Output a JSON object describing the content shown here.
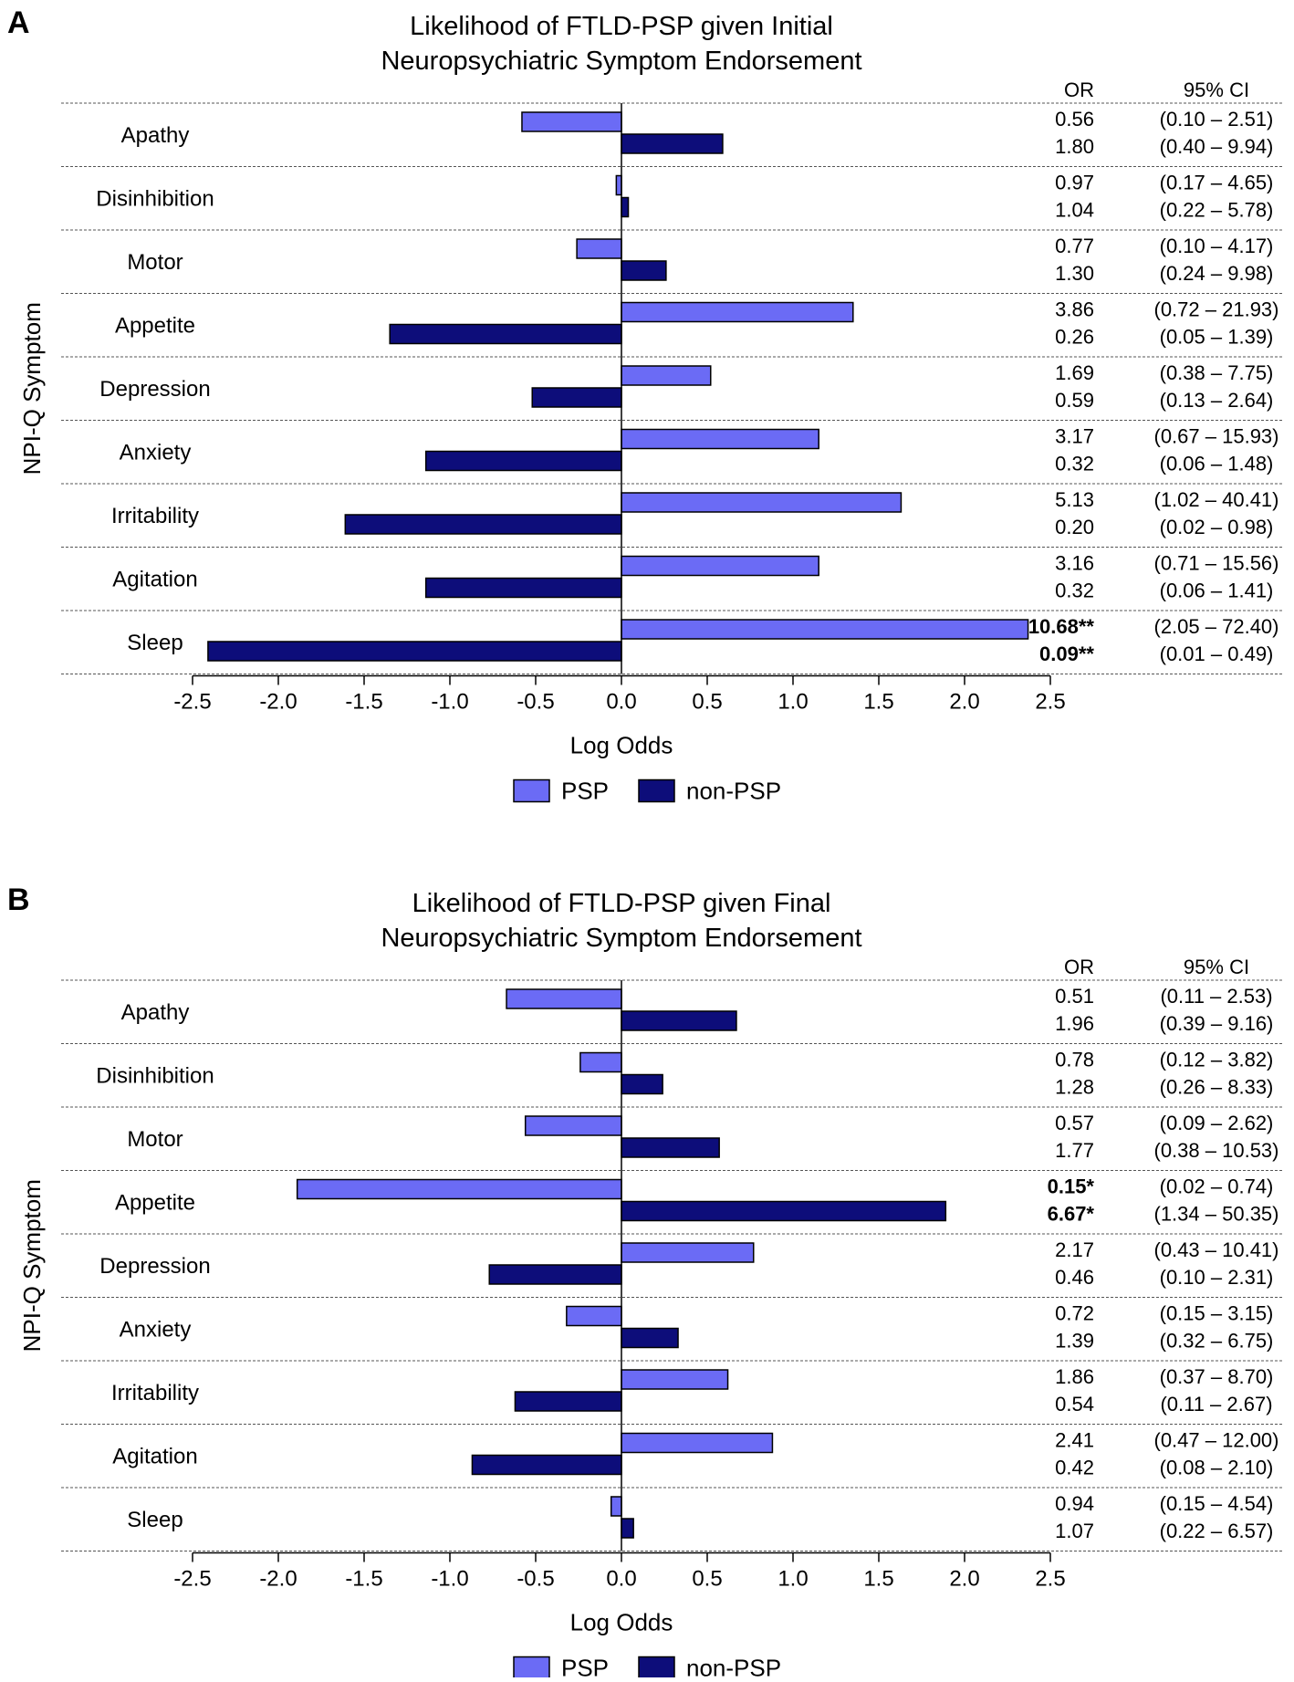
{
  "chart_data": [
    {
      "type": "bar",
      "orientation": "horizontal",
      "panel_label": "A",
      "title_line1": "Likelihood of FTLD-PSP given Initial",
      "title_line2": "Neuropsychiatric Symptom Endorsement",
      "xlabel": "Log Odds",
      "ylabel": "NPI-Q Symptom",
      "xlim": [
        -2.5,
        2.5
      ],
      "xticks": [
        "-2.5",
        "-2.0",
        "-1.5",
        "-1.0",
        "-0.5",
        "0.0",
        "0.5",
        "1.0",
        "1.5",
        "2.0",
        "2.5"
      ],
      "or_header": "OR",
      "ci_header": "95% CI",
      "legend": [
        {
          "name": "PSP",
          "color": "#6b6bf5"
        },
        {
          "name": "non-PSP",
          "color": "#0d0d7a"
        }
      ],
      "categories": [
        "Apathy",
        "Disinhibition",
        "Motor",
        "Appetite",
        "Depression",
        "Anxiety",
        "Irritability",
        "Agitation",
        "Sleep"
      ],
      "series": [
        {
          "name": "PSP",
          "values": [
            -0.58,
            -0.03,
            -0.26,
            1.35,
            0.52,
            1.15,
            1.63,
            1.15,
            2.37
          ],
          "or": [
            "0.56",
            "0.97",
            "0.77",
            "3.86",
            "1.69",
            "3.17",
            "5.13",
            "3.16",
            "10.68**"
          ],
          "ci": [
            "(0.10 – 2.51)",
            "(0.17 – 4.65)",
            "(0.10 – 4.17)",
            "(0.72 – 21.93)",
            "(0.38 – 7.75)",
            "(0.67 – 15.93)",
            "(1.02 – 40.41)",
            "(0.71 – 15.56)",
            "(2.05 – 72.40)"
          ],
          "significant": [
            false,
            false,
            false,
            false,
            false,
            false,
            false,
            false,
            true
          ]
        },
        {
          "name": "non-PSP",
          "values": [
            0.59,
            0.04,
            0.26,
            -1.35,
            -0.52,
            -1.14,
            -1.61,
            -1.14,
            -2.41
          ],
          "or": [
            "1.80",
            "1.04",
            "1.30",
            "0.26",
            "0.59",
            "0.32",
            "0.20",
            "0.32",
            "0.09**"
          ],
          "ci": [
            "(0.40 – 9.94)",
            "(0.22 – 5.78)",
            "(0.24 – 9.98)",
            "(0.05 – 1.39)",
            "(0.13 – 2.64)",
            "(0.06 – 1.48)",
            "(0.02 – 0.98)",
            "(0.06 – 1.41)",
            "(0.01 – 0.49)"
          ],
          "significant": [
            false,
            false,
            false,
            false,
            false,
            false,
            false,
            false,
            true
          ]
        }
      ]
    },
    {
      "type": "bar",
      "orientation": "horizontal",
      "panel_label": "B",
      "title_line1": "Likelihood of FTLD-PSP given Final",
      "title_line2": "Neuropsychiatric Symptom Endorsement",
      "xlabel": "Log Odds",
      "ylabel": "NPI-Q Symptom",
      "xlim": [
        -2.5,
        2.5
      ],
      "xticks": [
        "-2.5",
        "-2.0",
        "-1.5",
        "-1.0",
        "-0.5",
        "0.0",
        "0.5",
        "1.0",
        "1.5",
        "2.0",
        "2.5"
      ],
      "or_header": "OR",
      "ci_header": "95% CI",
      "legend": [
        {
          "name": "PSP",
          "color": "#6b6bf5"
        },
        {
          "name": "non-PSP",
          "color": "#0d0d7a"
        }
      ],
      "categories": [
        "Apathy",
        "Disinhibition",
        "Motor",
        "Appetite",
        "Depression",
        "Anxiety",
        "Irritability",
        "Agitation",
        "Sleep"
      ],
      "series": [
        {
          "name": "PSP",
          "values": [
            -0.67,
            -0.24,
            -0.56,
            -1.89,
            0.77,
            -0.32,
            0.62,
            0.88,
            -0.06
          ],
          "or": [
            "0.51",
            "0.78",
            "0.57",
            "0.15*",
            "2.17",
            "0.72",
            "1.86",
            "2.41",
            "0.94"
          ],
          "ci": [
            "(0.11 – 2.53)",
            "(0.12 – 3.82)",
            "(0.09 – 2.62)",
            "(0.02 – 0.74)",
            "(0.43 – 10.41)",
            "(0.15 – 3.15)",
            "(0.37 – 8.70)",
            "(0.47 – 12.00)",
            "(0.15 – 4.54)"
          ],
          "significant": [
            false,
            false,
            false,
            true,
            false,
            false,
            false,
            false,
            false
          ]
        },
        {
          "name": "non-PSP",
          "values": [
            0.67,
            0.24,
            0.57,
            1.89,
            -0.77,
            0.33,
            -0.62,
            -0.87,
            0.07
          ],
          "or": [
            "1.96",
            "1.28",
            "1.77",
            "6.67*",
            "0.46",
            "1.39",
            "0.54",
            "0.42",
            "1.07"
          ],
          "ci": [
            "(0.39 – 9.16)",
            "(0.26 – 8.33)",
            "(0.38 – 10.53)",
            "(1.34 – 50.35)",
            "(0.10 – 2.31)",
            "(0.32 – 6.75)",
            "(0.11 – 2.67)",
            "(0.08 – 2.10)",
            "(0.22 – 6.57)"
          ],
          "significant": [
            false,
            false,
            false,
            true,
            false,
            false,
            false,
            false,
            false
          ]
        }
      ]
    }
  ]
}
